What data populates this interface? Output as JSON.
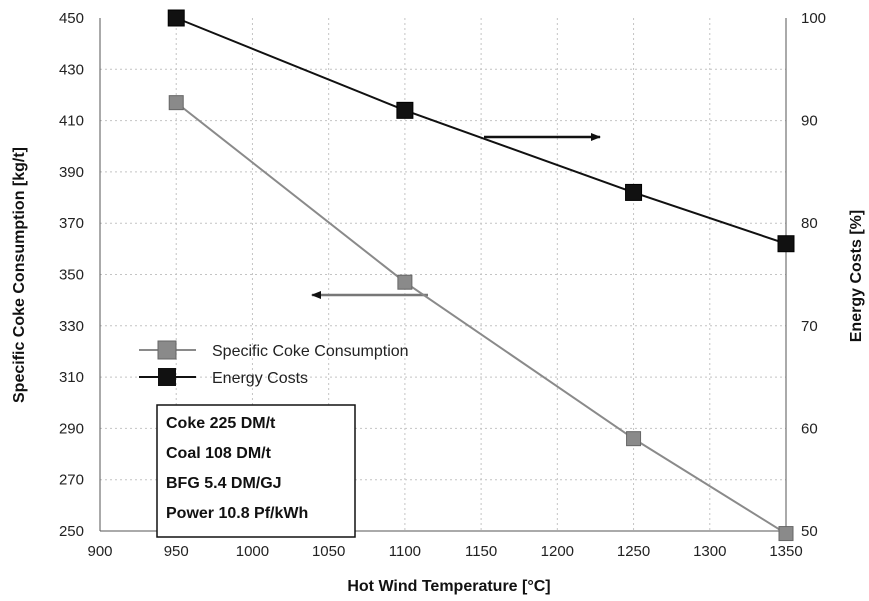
{
  "chart_data": {
    "type": "line",
    "xlabel": "Hot Wind Temperature [°C]",
    "ylabel_left": "Specific Coke Consumption [kg/t]",
    "ylabel_right": "Energy Costs [%]",
    "x_ticks": [
      "900",
      "950",
      "1000",
      "1050",
      "1100",
      "1150",
      "1200",
      "1250",
      "1300",
      "1350"
    ],
    "y_left_ticks": [
      "250",
      "270",
      "290",
      "310",
      "330",
      "350",
      "370",
      "390",
      "410",
      "430",
      "450"
    ],
    "y_right_ticks": [
      "50",
      "60",
      "70",
      "80",
      "90",
      "100"
    ],
    "xlim": [
      900,
      1350
    ],
    "ylim_left": [
      250,
      450
    ],
    "ylim_right": [
      50,
      100
    ],
    "grid": true,
    "series": [
      {
        "name": "Specific Coke Consumption",
        "axis": "left",
        "color": "#8a8a8a",
        "x": [
          950,
          1100,
          1250,
          1350
        ],
        "y": [
          417,
          347,
          286,
          249
        ]
      },
      {
        "name": "Energy Costs",
        "axis": "right",
        "color": "#111111",
        "x": [
          950,
          1100,
          1250,
          1350
        ],
        "y": [
          100,
          91,
          83,
          78
        ]
      }
    ],
    "legend_position": "lower-left",
    "annotation_box": [
      "Coke 225 DM/t",
      "Coal 108 DM/t",
      "BFG 5.4 DM/GJ",
      "Power 10.8 Pf/kWh"
    ]
  }
}
